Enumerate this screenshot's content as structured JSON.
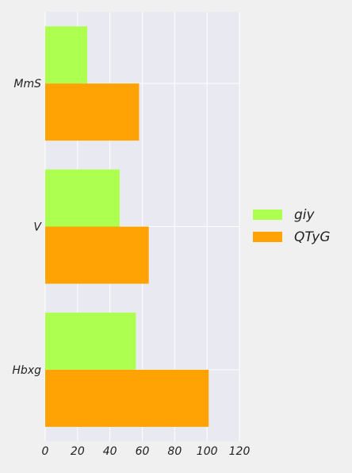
{
  "chart_data": {
    "type": "bar",
    "orientation": "horizontal",
    "categories": [
      "MmS",
      "V",
      "Hbxg"
    ],
    "series": [
      {
        "name": "giy",
        "color": "#adff50",
        "values": [
          26,
          46,
          56
        ]
      },
      {
        "name": "QTyG",
        "color": "#ffa305",
        "values": [
          58,
          64,
          101
        ]
      }
    ],
    "xlim": [
      0,
      120
    ],
    "xticks": [
      "0",
      "20",
      "40",
      "60",
      "80",
      "100",
      "120"
    ],
    "grid": true,
    "legend_position": "right",
    "background": "#e9e9f1"
  }
}
